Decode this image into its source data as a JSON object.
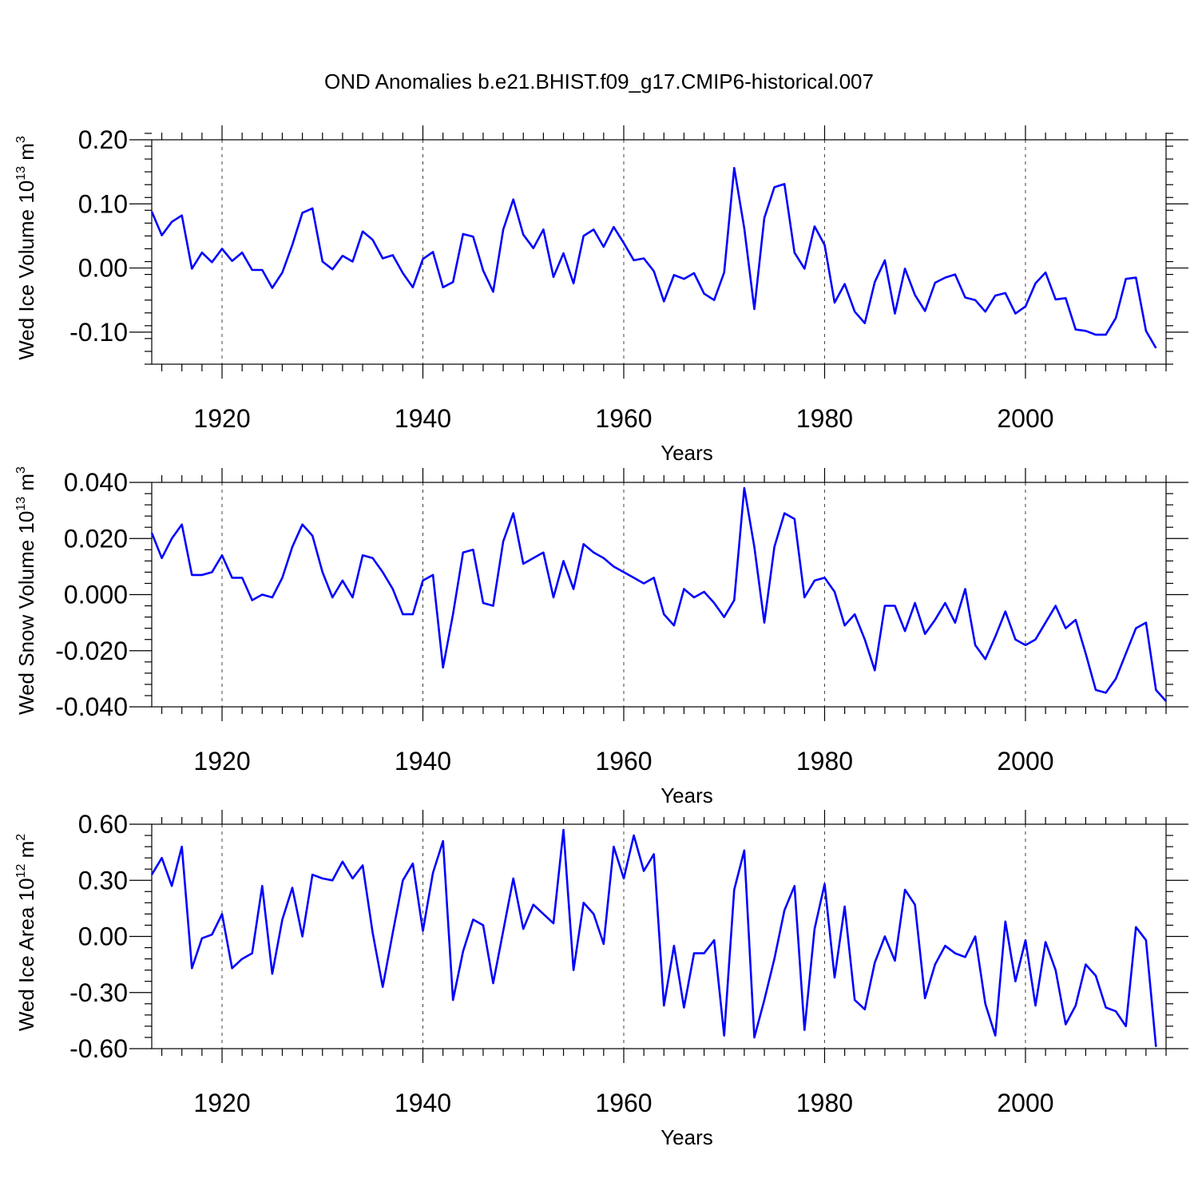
{
  "title": "OND Anomalies b.e21.BHIST.f09_g17.CMIP6-historical.007",
  "chart_data": [
    {
      "type": "line",
      "name": "ice-volume",
      "ylabel": {
        "prefix": "Wed Ice Volume 10",
        "exp": "13",
        "unit": " m",
        "unit_exp": "3"
      },
      "xlabel": "Years",
      "xlim": [
        1913,
        2014
      ],
      "xticks": [
        1920,
        1940,
        1960,
        1980,
        2000
      ],
      "xtick_labels": [
        "1920",
        "1940",
        "1960",
        "1980",
        "2000"
      ],
      "ylim": [
        -0.15,
        0.2
      ],
      "yticks": [
        0.2,
        0.1,
        0.0,
        -0.1
      ],
      "ytick_labels": [
        "0.20",
        "0.10",
        "0.00",
        "-0.10"
      ],
      "x_start": 1913,
      "values": [
        0.088,
        0.051,
        0.072,
        0.082,
        -0.001,
        0.024,
        0.009,
        0.03,
        0.011,
        0.024,
        -0.003,
        -0.003,
        -0.031,
        -0.007,
        0.036,
        0.086,
        0.093,
        0.01,
        -0.002,
        0.019,
        0.01,
        0.057,
        0.044,
        0.015,
        0.02,
        -0.008,
        -0.03,
        0.014,
        0.025,
        -0.03,
        -0.022,
        0.053,
        0.049,
        -0.004,
        -0.037,
        0.06,
        0.107,
        0.052,
        0.031,
        0.06,
        -0.014,
        0.023,
        -0.024,
        0.05,
        0.06,
        0.033,
        0.064,
        0.039,
        0.012,
        0.015,
        -0.005,
        -0.052,
        -0.011,
        -0.017,
        -0.008,
        -0.04,
        -0.05,
        -0.007,
        0.156,
        0.062,
        -0.064,
        0.078,
        0.126,
        0.131,
        0.024,
        -0.001,
        0.065,
        0.036,
        -0.054,
        -0.025,
        -0.068,
        -0.086,
        -0.022,
        0.012,
        -0.071,
        -0.001,
        -0.042,
        -0.067,
        -0.023,
        -0.015,
        -0.01,
        -0.046,
        -0.05,
        -0.068,
        -0.043,
        -0.039,
        -0.071,
        -0.06,
        -0.024,
        -0.007,
        -0.049,
        -0.047,
        -0.096,
        -0.098,
        -0.104,
        -0.104,
        -0.078,
        -0.017,
        -0.015,
        -0.098,
        -0.125
      ]
    },
    {
      "type": "line",
      "name": "snow-volume",
      "ylabel": {
        "prefix": "Wed Snow Volume 10",
        "exp": "13",
        "unit": " m",
        "unit_exp": "3"
      },
      "xlabel": "Years",
      "xlim": [
        1913,
        2014
      ],
      "xticks": [
        1920,
        1940,
        1960,
        1980,
        2000
      ],
      "xtick_labels": [
        "1920",
        "1940",
        "1960",
        "1980",
        "2000"
      ],
      "ylim": [
        -0.04,
        0.04
      ],
      "yticks": [
        0.04,
        0.02,
        0.0,
        -0.02,
        -0.04
      ],
      "ytick_labels": [
        "0.040",
        "0.020",
        "0.000",
        "-0.020",
        "-0.040"
      ],
      "x_start": 1913,
      "values": [
        0.022,
        0.013,
        0.02,
        0.025,
        0.007,
        0.007,
        0.008,
        0.014,
        0.006,
        0.006,
        -0.002,
        0.0,
        -0.001,
        0.006,
        0.017,
        0.025,
        0.021,
        0.008,
        -0.001,
        0.005,
        -0.001,
        0.014,
        0.013,
        0.008,
        0.002,
        -0.007,
        -0.007,
        0.005,
        0.007,
        -0.026,
        -0.007,
        0.015,
        0.016,
        -0.003,
        -0.004,
        0.019,
        0.029,
        0.011,
        0.013,
        0.015,
        -0.001,
        0.012,
        0.002,
        0.018,
        0.015,
        0.013,
        0.01,
        0.008,
        0.006,
        0.004,
        0.006,
        -0.007,
        -0.011,
        0.002,
        -0.001,
        0.001,
        -0.003,
        -0.008,
        -0.002,
        0.038,
        0.017,
        -0.01,
        0.017,
        0.029,
        0.027,
        -0.001,
        0.005,
        0.006,
        0.001,
        -0.011,
        -0.007,
        -0.016,
        -0.027,
        -0.004,
        -0.004,
        -0.013,
        -0.003,
        -0.014,
        -0.009,
        -0.003,
        -0.01,
        0.002,
        -0.018,
        -0.023,
        -0.015,
        -0.006,
        -0.016,
        -0.018,
        -0.016,
        -0.01,
        -0.004,
        -0.012,
        -0.009,
        -0.021,
        -0.034,
        -0.035,
        -0.03,
        -0.021,
        -0.012,
        -0.01,
        -0.034,
        -0.038
      ]
    },
    {
      "type": "line",
      "name": "ice-area",
      "ylabel": {
        "prefix": "Wed Ice Area 10",
        "exp": "12",
        "unit": " m",
        "unit_exp": "2"
      },
      "xlabel": "Years",
      "xlim": [
        1913,
        2014
      ],
      "xticks": [
        1920,
        1940,
        1960,
        1980,
        2000
      ],
      "xtick_labels": [
        "1920",
        "1940",
        "1960",
        "1980",
        "2000"
      ],
      "ylim": [
        -0.6,
        0.6
      ],
      "yticks": [
        0.6,
        0.3,
        0.0,
        -0.3,
        -0.6
      ],
      "ytick_labels": [
        "0.60",
        "0.30",
        "0.00",
        "-0.30",
        "-0.60"
      ],
      "x_start": 1913,
      "values": [
        0.33,
        0.42,
        0.27,
        0.48,
        -0.17,
        -0.01,
        0.01,
        0.12,
        -0.17,
        -0.12,
        -0.09,
        0.27,
        -0.2,
        0.09,
        0.26,
        0.0,
        0.33,
        0.31,
        0.3,
        0.4,
        0.31,
        0.38,
        0.02,
        -0.27,
        0.02,
        0.3,
        0.39,
        0.03,
        0.34,
        0.51,
        -0.34,
        -0.08,
        0.09,
        0.06,
        -0.25,
        0.03,
        0.31,
        0.04,
        0.17,
        0.12,
        0.07,
        0.57,
        -0.18,
        0.18,
        0.12,
        -0.04,
        0.48,
        0.31,
        0.54,
        0.35,
        0.44,
        -0.37,
        -0.05,
        -0.38,
        -0.09,
        -0.09,
        -0.02,
        -0.53,
        0.25,
        0.46,
        -0.54,
        -0.34,
        -0.12,
        0.14,
        0.27,
        -0.5,
        0.04,
        0.28,
        -0.22,
        0.16,
        -0.34,
        -0.39,
        -0.14,
        0.0,
        -0.13,
        0.25,
        0.17,
        -0.33,
        -0.15,
        -0.05,
        -0.09,
        -0.11,
        0.0,
        -0.36,
        -0.53,
        0.08,
        -0.24,
        -0.02,
        -0.37,
        -0.03,
        -0.18,
        -0.47,
        -0.37,
        -0.15,
        -0.21,
        -0.38,
        -0.4,
        -0.48,
        0.05,
        -0.02,
        -0.59
      ]
    }
  ]
}
